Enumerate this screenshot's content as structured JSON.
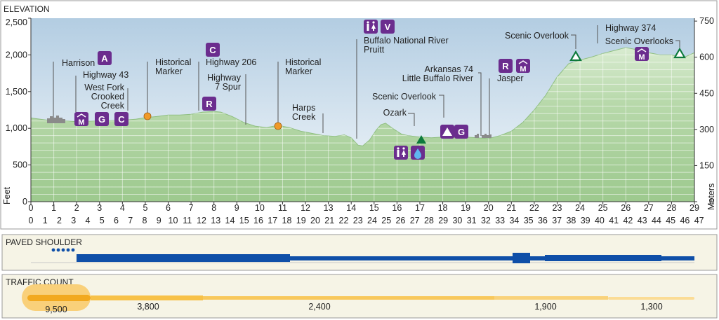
{
  "chart_data": {
    "type": "area",
    "title": "ELEVATION",
    "ylabel_left": "Feet",
    "ylabel_right": "Meters",
    "xlim_miles": [
      0,
      29
    ],
    "ylim_feet": [
      0,
      2500
    ],
    "miles_ticks": [
      "0",
      "1",
      "2",
      "3",
      "4",
      "5",
      "6",
      "7",
      "8",
      "9",
      "10",
      "11",
      "12",
      "13",
      "14",
      "15",
      "16",
      "17",
      "18",
      "19",
      "20",
      "21",
      "22",
      "23",
      "24",
      "25",
      "26",
      "27",
      "28",
      "29"
    ],
    "km_ticks": [
      "0",
      "1",
      "2",
      "3",
      "4",
      "5",
      "6",
      "7",
      "8",
      "9",
      "10",
      "11",
      "12",
      "13",
      "14",
      "15",
      "16",
      "17",
      "18",
      "19",
      "20",
      "21",
      "22",
      "23",
      "24",
      "25",
      "26",
      "27",
      "28",
      "29",
      "30",
      "31",
      "32",
      "33",
      "34",
      "35",
      "36",
      "37",
      "38",
      "39",
      "40",
      "41",
      "42",
      "43",
      "44",
      "45",
      "46",
      "47"
    ],
    "feet_ticks": [
      "0",
      "500",
      "1,000",
      "1,500",
      "2,000",
      "2,500"
    ],
    "meter_ticks": [
      "0",
      "150",
      "300",
      "450",
      "600",
      "750"
    ],
    "grid": true,
    "profile": [
      [
        0,
        1140
      ],
      [
        0.5,
        1120
      ],
      [
        1,
        1100
      ],
      [
        1.5,
        1100
      ],
      [
        2,
        1090
      ],
      [
        3,
        1100
      ],
      [
        4,
        1110
      ],
      [
        4.6,
        1125
      ],
      [
        5,
        1145
      ],
      [
        5.5,
        1160
      ],
      [
        6,
        1180
      ],
      [
        6.5,
        1180
      ],
      [
        7,
        1190
      ],
      [
        7.5,
        1220
      ],
      [
        8,
        1230
      ],
      [
        8.3,
        1220
      ],
      [
        8.8,
        1160
      ],
      [
        9.3,
        1080
      ],
      [
        9.8,
        1030
      ],
      [
        10.3,
        1010
      ],
      [
        10.8,
        1040
      ],
      [
        11.3,
        1010
      ],
      [
        11.8,
        960
      ],
      [
        12.3,
        930
      ],
      [
        12.8,
        900
      ],
      [
        13.3,
        890
      ],
      [
        13.7,
        910
      ],
      [
        14,
        870
      ],
      [
        14.3,
        770
      ],
      [
        14.5,
        760
      ],
      [
        14.8,
        840
      ],
      [
        15.1,
        980
      ],
      [
        15.3,
        1050
      ],
      [
        15.5,
        1070
      ],
      [
        15.8,
        1000
      ],
      [
        16.2,
        920
      ],
      [
        16.5,
        900
      ],
      [
        17,
        880
      ],
      [
        17.5,
        870
      ],
      [
        18,
        880
      ],
      [
        18.5,
        880
      ],
      [
        19,
        880
      ],
      [
        19.5,
        870
      ],
      [
        20,
        860
      ],
      [
        20.5,
        900
      ],
      [
        21,
        960
      ],
      [
        21.5,
        1080
      ],
      [
        22,
        1250
      ],
      [
        22.5,
        1450
      ],
      [
        23,
        1700
      ],
      [
        23.5,
        1880
      ],
      [
        24,
        1930
      ],
      [
        24.5,
        1970
      ],
      [
        25,
        2020
      ],
      [
        25.5,
        2060
      ],
      [
        26,
        2100
      ],
      [
        26.5,
        2070
      ],
      [
        27,
        2030
      ],
      [
        27.5,
        2000
      ],
      [
        28,
        2000
      ],
      [
        28.5,
        1960
      ],
      [
        29,
        2030
      ]
    ],
    "places": [
      {
        "name": "Harrison",
        "mile": 0.6
      },
      {
        "name": "Highway 43",
        "mile": 2.2
      },
      {
        "name": "West Fork Crooked Creek",
        "mile": 4.3
      },
      {
        "name": "Historical Marker",
        "mile": 5.2
      },
      {
        "name": "Highway 206",
        "mile": 7.4
      },
      {
        "name": "Highway 7 Spur",
        "mile": 9.5
      },
      {
        "name": "Historical Marker",
        "mile": 10.8
      },
      {
        "name": "Harps Creek",
        "mile": 12.8
      },
      {
        "name": "Buffalo National River Pruitt",
        "mile": 14.2
      },
      {
        "name": "Scenic Overlook",
        "mile": 16.3
      },
      {
        "name": "Ozark",
        "mile": 17.4
      },
      {
        "name": "Arkansas 74",
        "mile": 19.5
      },
      {
        "name": "Little Buffalo River",
        "mile": 19.5
      },
      {
        "name": "Jasper",
        "mile": 20.2
      },
      {
        "name": "Scenic Overlook",
        "mile": 23.8
      },
      {
        "name": "Highway 374",
        "mile": 24.8
      },
      {
        "name": "Scenic Overlooks",
        "mile": 28.6
      }
    ],
    "place_labels": {
      "harrison": "Harrison",
      "hwy43": "Highway 43",
      "westfork": [
        "West Fork",
        "Crooked",
        "Creek"
      ],
      "hist1": [
        "Historical",
        "Marker"
      ],
      "hwy206": "Highway 206",
      "hwy7": [
        "Highway",
        "7 Spur"
      ],
      "hist2": [
        "Historical",
        "Marker"
      ],
      "harps": [
        "Harps",
        "Creek"
      ],
      "buffalo": [
        "Buffalo National River",
        "Pruitt"
      ],
      "overlook1": "Scenic Overlook",
      "ozark": "Ozark",
      "ark74": "Arkansas 74",
      "littlebuffalo": "Little Buffalo River",
      "jasper": "Jasper",
      "overlook2": "Scenic Overlook",
      "hwy374": "Highway 374",
      "overlooks": "Scenic Overlooks"
    },
    "badges": {
      "A": "A",
      "C": "C",
      "G": "G",
      "R": "R",
      "V": "V",
      "M": "M"
    }
  },
  "paved_shoulder": {
    "title": "PAVED SHOULDER"
  },
  "traffic_count": {
    "title": "TRAFFIC COUNT",
    "values": [
      "9,500",
      "3,800",
      "2,400",
      "1,900",
      "1,300"
    ]
  },
  "colors": {
    "sky_top": "#b9d3e6",
    "terrain": "#a9cf9c",
    "badge": "#6b2d8e",
    "shoulder": "#0f4fa8",
    "traffic": "#f5b82e",
    "marker": "#f09a28",
    "triangle": "#0d7a3b"
  }
}
